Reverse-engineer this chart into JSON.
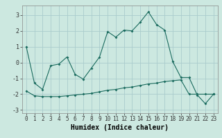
{
  "title": "",
  "xlabel": "Humidex (Indice chaleur)",
  "ylabel": "",
  "background_color": "#cce8e0",
  "grid_color": "#aacccc",
  "line_color": "#1a6b5e",
  "xlim": [
    -0.5,
    23.5
  ],
  "ylim": [
    -3.2,
    3.6
  ],
  "yticks": [
    -3,
    -2,
    -1,
    0,
    1,
    2,
    3
  ],
  "xticks": [
    0,
    1,
    2,
    3,
    4,
    5,
    6,
    7,
    8,
    9,
    10,
    11,
    12,
    13,
    14,
    15,
    16,
    17,
    18,
    19,
    20,
    21,
    22,
    23
  ],
  "line1_x": [
    0,
    1,
    2,
    3,
    4,
    5,
    6,
    7,
    8,
    9,
    10,
    11,
    12,
    13,
    14,
    15,
    16,
    17,
    18,
    19,
    20,
    21,
    22,
    23
  ],
  "line1_y": [
    1.0,
    -1.3,
    -1.7,
    -0.2,
    -0.1,
    0.35,
    -0.75,
    -1.05,
    -0.35,
    0.35,
    1.95,
    1.6,
    2.05,
    2.0,
    2.55,
    3.2,
    2.4,
    2.05,
    0.05,
    -0.95,
    -0.95,
    -2.05,
    -2.6,
    -2.0
  ],
  "line2_x": [
    0,
    1,
    2,
    3,
    4,
    5,
    6,
    7,
    8,
    9,
    10,
    11,
    12,
    13,
    14,
    15,
    16,
    17,
    18,
    19,
    20,
    21,
    22,
    23
  ],
  "line2_y": [
    -1.8,
    -2.1,
    -2.15,
    -2.15,
    -2.15,
    -2.1,
    -2.05,
    -2.0,
    -1.95,
    -1.85,
    -1.75,
    -1.7,
    -1.6,
    -1.55,
    -1.45,
    -1.35,
    -1.3,
    -1.2,
    -1.15,
    -1.1,
    -2.0,
    -2.0,
    -2.0,
    -2.0
  ],
  "tick_fontsize": 5.5,
  "xlabel_fontsize": 7
}
